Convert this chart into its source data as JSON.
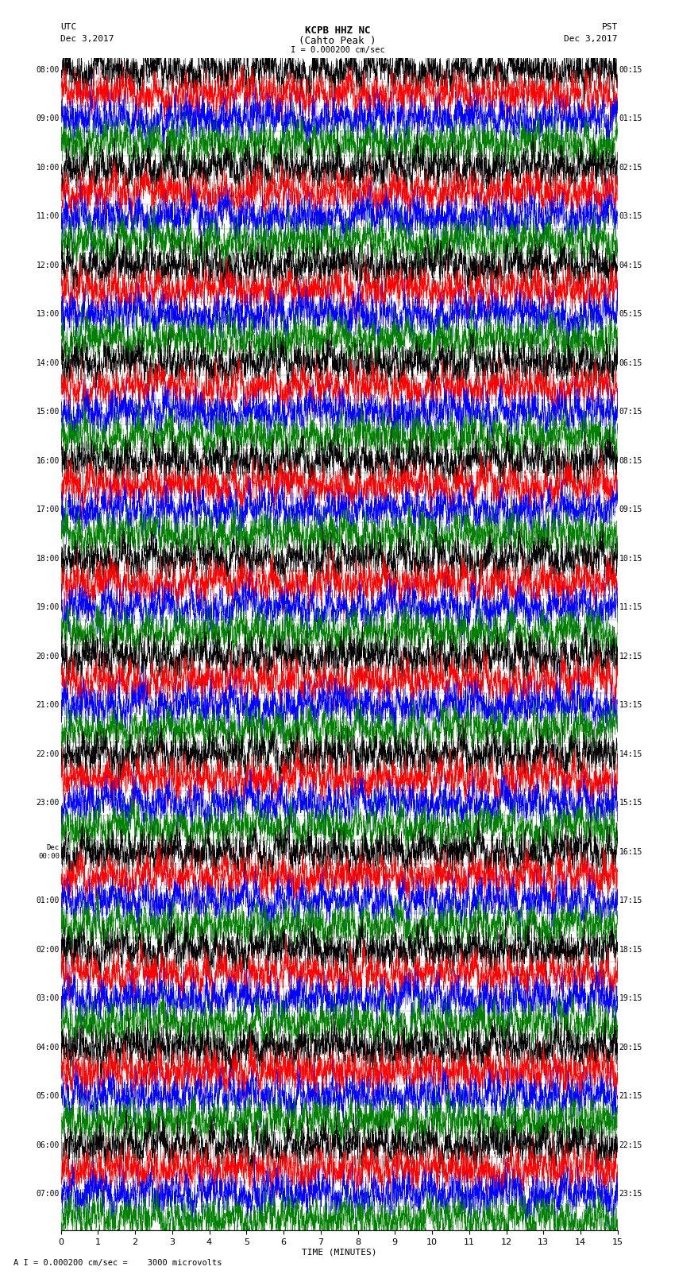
{
  "title_line1": "KCPB HHZ NC",
  "title_line2": "(Cahto Peak )",
  "title_line3": "I = 0.000200 cm/sec",
  "left_header_line1": "UTC",
  "left_header_line2": "Dec 3,2017",
  "right_header_line1": "PST",
  "right_header_line2": "Dec 3,2017",
  "xlabel": "TIME (MINUTES)",
  "footer": "A I = 0.000200 cm/sec =    3000 microvolts",
  "utc_times": [
    "08:00",
    "",
    "09:00",
    "",
    "10:00",
    "",
    "11:00",
    "",
    "12:00",
    "",
    "13:00",
    "",
    "14:00",
    "",
    "15:00",
    "",
    "16:00",
    "",
    "17:00",
    "",
    "18:00",
    "",
    "19:00",
    "",
    "20:00",
    "",
    "21:00",
    "",
    "22:00",
    "",
    "23:00",
    "",
    "Dec\n00:00",
    "",
    "01:00",
    "",
    "02:00",
    "",
    "03:00",
    "",
    "04:00",
    "",
    "05:00",
    "",
    "06:00",
    "",
    "07:00"
  ],
  "pst_times": [
    "00:15",
    "",
    "01:15",
    "",
    "02:15",
    "",
    "03:15",
    "",
    "04:15",
    "",
    "05:15",
    "",
    "06:15",
    "",
    "07:15",
    "",
    "08:15",
    "",
    "09:15",
    "",
    "10:15",
    "",
    "11:15",
    "",
    "12:15",
    "",
    "13:15",
    "",
    "14:15",
    "",
    "15:15",
    "",
    "16:15",
    "",
    "17:15",
    "",
    "18:15",
    "",
    "19:15",
    "",
    "20:15",
    "",
    "21:15",
    "",
    "22:15",
    "",
    "23:15"
  ],
  "num_rows": 48,
  "colors_cycle": [
    "black",
    "red",
    "blue",
    "green"
  ],
  "seed": 42
}
